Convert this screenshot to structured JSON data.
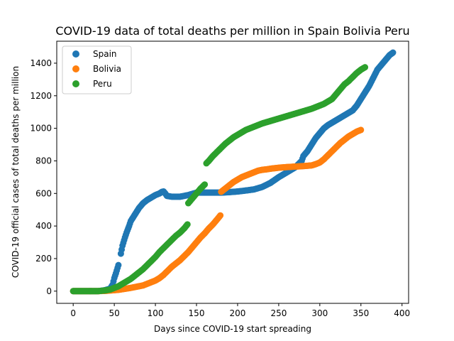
{
  "chart_data": {
    "type": "scatter",
    "title": "COVID-19 data of total deaths per million in Spain Bolivia Peru",
    "xlabel": "Days since COVID-19 start spreading",
    "ylabel": "COVID-19 official cases of total deaths per million",
    "xlim": [
      -20,
      408
    ],
    "ylim": [
      -75,
      1535
    ],
    "xticks": [
      0,
      50,
      100,
      150,
      200,
      250,
      300,
      350,
      400
    ],
    "yticks": [
      0,
      200,
      400,
      600,
      800,
      1000,
      1200,
      1400
    ],
    "legend_position": "top-left",
    "series": [
      {
        "name": "Spain",
        "color": "#1f77b4",
        "x": [
          0,
          10,
          20,
          30,
          38,
          45,
          48,
          50,
          52,
          55,
          58,
          60,
          63,
          65,
          68,
          70,
          75,
          80,
          85,
          90,
          95,
          100,
          105,
          108,
          110,
          112,
          114,
          120,
          130,
          140,
          150,
          160,
          170,
          180,
          190,
          200,
          210,
          220,
          230,
          240,
          250,
          260,
          270,
          278,
          280,
          285,
          290,
          295,
          300,
          305,
          310,
          320,
          330,
          340,
          345,
          350,
          355,
          360,
          365,
          370,
          375,
          380,
          385,
          389
        ],
        "y": [
          0,
          0,
          0,
          0,
          5,
          15,
          40,
          80,
          110,
          160,
          230,
          280,
          330,
          360,
          400,
          430,
          470,
          510,
          540,
          560,
          575,
          590,
          600,
          610,
          612,
          600,
          585,
          580,
          580,
          590,
          605,
          605,
          605,
          605,
          608,
          612,
          618,
          625,
          640,
          665,
          700,
          730,
          760,
          800,
          830,
          860,
          900,
          940,
          970,
          1000,
          1020,
          1050,
          1080,
          1110,
          1140,
          1180,
          1220,
          1260,
          1310,
          1360,
          1390,
          1420,
          1450,
          1465
        ]
      },
      {
        "name": "Bolivia",
        "color": "#ff7f0e",
        "x": [
          0,
          10,
          20,
          30,
          40,
          45,
          50,
          55,
          60,
          65,
          70,
          75,
          80,
          85,
          90,
          95,
          100,
          105,
          110,
          115,
          120,
          125,
          130,
          135,
          140,
          145,
          150,
          155,
          160,
          165,
          170,
          175,
          179,
          180,
          185,
          190,
          195,
          200,
          205,
          210,
          215,
          220,
          225,
          230,
          235,
          240,
          250,
          260,
          270,
          280,
          290,
          295,
          300,
          305,
          310,
          315,
          320,
          325,
          330,
          335,
          340,
          345,
          350
        ],
        "y": [
          0,
          0,
          0,
          0,
          2,
          4,
          6,
          8,
          12,
          16,
          20,
          25,
          30,
          35,
          45,
          55,
          65,
          80,
          100,
          125,
          150,
          170,
          190,
          215,
          240,
          270,
          300,
          330,
          355,
          385,
          410,
          440,
          465,
          610,
          630,
          650,
          670,
          685,
          700,
          710,
          720,
          730,
          740,
          745,
          748,
          752,
          758,
          762,
          765,
          768,
          772,
          780,
          790,
          810,
          835,
          860,
          885,
          910,
          930,
          950,
          965,
          980,
          990
        ]
      },
      {
        "name": "Peru",
        "color": "#2ca02c",
        "x": [
          0,
          10,
          20,
          30,
          40,
          45,
          50,
          55,
          60,
          65,
          70,
          75,
          80,
          85,
          90,
          95,
          100,
          105,
          110,
          115,
          120,
          125,
          130,
          135,
          139,
          140,
          145,
          150,
          155,
          160,
          162,
          165,
          170,
          175,
          180,
          185,
          190,
          195,
          200,
          205,
          210,
          220,
          230,
          240,
          250,
          260,
          270,
          280,
          290,
          300,
          305,
          310,
          315,
          320,
          325,
          330,
          335,
          340,
          345,
          350,
          355
        ],
        "y": [
          0,
          0,
          0,
          0,
          5,
          10,
          20,
          30,
          45,
          60,
          75,
          95,
          115,
          135,
          160,
          185,
          210,
          240,
          265,
          290,
          315,
          340,
          360,
          385,
          410,
          540,
          570,
          600,
          630,
          655,
          785,
          800,
          830,
          855,
          880,
          905,
          925,
          945,
          960,
          975,
          990,
          1010,
          1030,
          1045,
          1060,
          1075,
          1090,
          1105,
          1120,
          1140,
          1150,
          1165,
          1180,
          1210,
          1240,
          1270,
          1290,
          1315,
          1340,
          1360,
          1375
        ]
      }
    ]
  }
}
